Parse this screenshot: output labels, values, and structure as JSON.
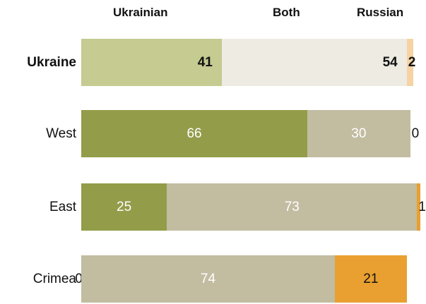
{
  "chart_data": {
    "type": "bar",
    "orientation": "horizontal",
    "stacked": true,
    "title": "",
    "xlabel": "",
    "ylabel": "",
    "xlim": [
      0,
      100
    ],
    "grid": false,
    "legend": "column headers on top",
    "categories": [
      "Ukraine",
      "West",
      "East",
      "Crimea"
    ],
    "series": [
      {
        "name": "Ukrainian",
        "values": [
          41,
          66,
          25,
          0
        ],
        "labels": [
          "41",
          "66",
          "25",
          "0"
        ]
      },
      {
        "name": "Both",
        "values": [
          54,
          30,
          73,
          74
        ],
        "labels": [
          "54",
          "30",
          "73",
          "74"
        ]
      },
      {
        "name": "Russian",
        "values": [
          2,
          0,
          1,
          21
        ],
        "labels": [
          "2",
          "0",
          "1",
          "21"
        ]
      }
    ],
    "colors": {
      "total_row": [
        "#c5cb91",
        "#eeebe3",
        "#f5d3a4"
      ],
      "regions": [
        "#939c49",
        "#c2bca1",
        "#e9a030"
      ]
    }
  }
}
